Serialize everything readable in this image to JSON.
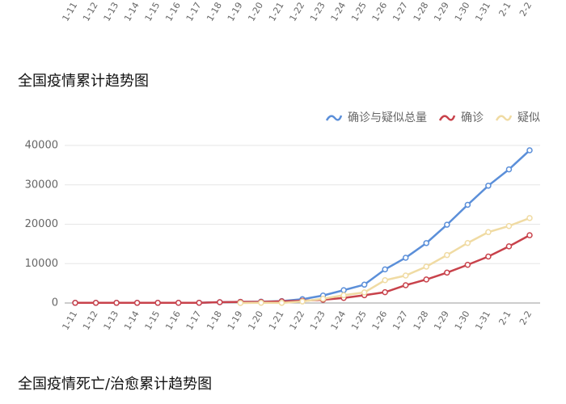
{
  "chart_data": [
    {
      "type": "line",
      "categories": [
        "1-11",
        "1-12",
        "1-13",
        "1-14",
        "1-15",
        "1-16",
        "1-17",
        "1-18",
        "1-19",
        "1-20",
        "1-21",
        "1-22",
        "1-23",
        "1-24",
        "1-25",
        "1-26",
        "1-27",
        "1-28",
        "1-29",
        "1-30",
        "1-31",
        "2-1",
        "2-2"
      ]
    },
    {
      "type": "line",
      "title": "全国疫情累计趋势图",
      "categories": [
        "1-11",
        "1-12",
        "1-13",
        "1-14",
        "1-15",
        "1-16",
        "1-17",
        "1-18",
        "1-19",
        "1-20",
        "1-21",
        "1-22",
        "1-23",
        "1-24",
        "1-25",
        "1-26",
        "1-27",
        "1-28",
        "1-29",
        "1-30",
        "1-31",
        "2-1",
        "2-2"
      ],
      "series": [
        {
          "name": "确诊与疑似总量",
          "color": "#5b8fd9",
          "values": [
            41,
            41,
            41,
            41,
            41,
            45,
            62,
            198,
            291,
            345,
            477,
            964,
            1902,
            3252,
            4659,
            8538,
            11488,
            15213,
            19878,
            24930,
            29779,
            33924,
            38763
          ]
        },
        {
          "name": "确诊",
          "color": "#c8424b",
          "values": [
            41,
            41,
            41,
            41,
            41,
            45,
            62,
            198,
            291,
            291,
            440,
            571,
            830,
            1287,
            1975,
            2744,
            4515,
            5974,
            7711,
            9692,
            11791,
            14380,
            17205
          ]
        },
        {
          "name": "疑似",
          "color": "#f0dba3",
          "values": [
            null,
            null,
            null,
            null,
            null,
            null,
            null,
            null,
            0,
            54,
            37,
            393,
            1072,
            1965,
            2684,
            5794,
            6973,
            9239,
            12167,
            15238,
            17988,
            19544,
            21558
          ]
        }
      ],
      "ylim": [
        0,
        40000
      ],
      "yticks": [
        0,
        10000,
        20000,
        30000,
        40000
      ],
      "grid": true,
      "legend": "top-right"
    },
    {
      "type": "line",
      "title": "全国疫情死亡/治愈累计趋势图"
    }
  ]
}
